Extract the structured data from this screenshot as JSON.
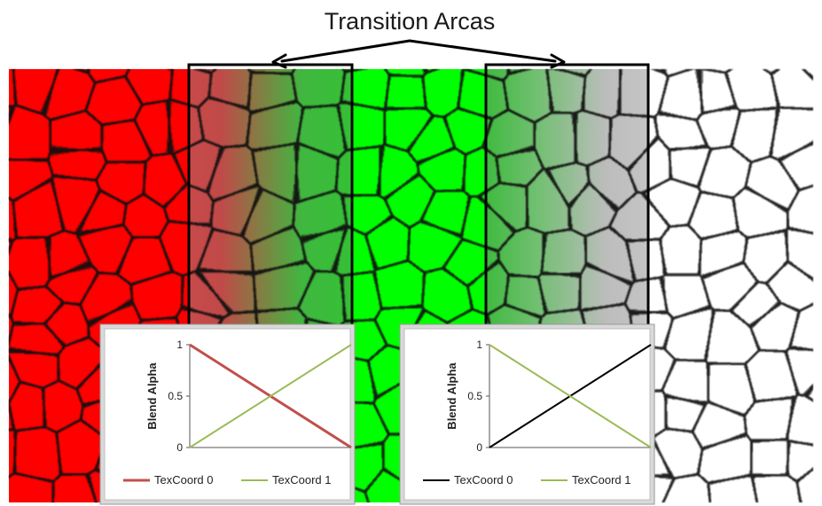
{
  "figure": {
    "title": "Transition Arcas",
    "colors": {
      "red": "#ff0000",
      "green": "#00ff00",
      "white": "#ffffff",
      "cell_border": "#111111",
      "series_red": "#c0504d",
      "series_green": "#9bbb59",
      "series_black": "#000000",
      "panel_bg": "#d9d9d9"
    }
  },
  "chart_data": [
    {
      "type": "line",
      "ylabel": "Blend Alpha",
      "xlabel": "",
      "ylim": [
        0,
        1
      ],
      "xlim": [
        0,
        1
      ],
      "yticks": [
        "0",
        "0.5",
        "1"
      ],
      "x": [
        0,
        1
      ],
      "series": [
        {
          "name": "TexCoord 0",
          "color": "#c0504d",
          "values": [
            1,
            0
          ]
        },
        {
          "name": "TexCoord 1",
          "color": "#9bbb59",
          "values": [
            0,
            1
          ]
        }
      ],
      "legend": "bottom"
    },
    {
      "type": "line",
      "ylabel": "Blend Alpha",
      "xlabel": "",
      "ylim": [
        0,
        1
      ],
      "xlim": [
        0,
        1
      ],
      "yticks": [
        "0",
        "0.5",
        "1"
      ],
      "x": [
        0,
        1
      ],
      "series": [
        {
          "name": "TexCoord 0",
          "color": "#000000",
          "values": [
            0,
            1
          ]
        },
        {
          "name": "TexCoord 1",
          "color": "#9bbb59",
          "values": [
            1,
            0
          ]
        }
      ],
      "legend": "bottom"
    }
  ]
}
